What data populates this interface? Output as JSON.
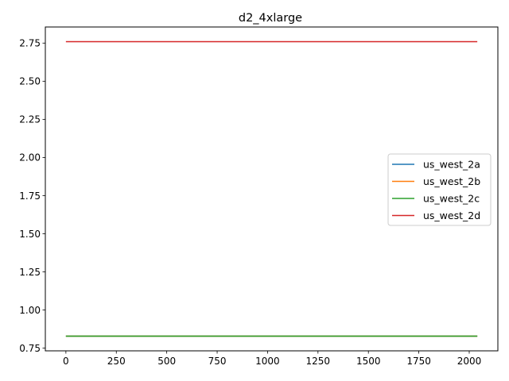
{
  "chart_data": {
    "type": "line",
    "title": "d2_4xlarge",
    "xlabel": "",
    "ylabel": "",
    "xlim": [
      -102,
      2142
    ],
    "ylim": [
      0.7325,
      2.8555
    ],
    "xticks": [
      0,
      250,
      500,
      750,
      1000,
      1250,
      1500,
      1750,
      2000
    ],
    "yticks": [
      0.75,
      1.0,
      1.25,
      1.5,
      1.75,
      2.0,
      2.25,
      2.5,
      2.75
    ],
    "ytick_labels": [
      "0.75",
      "1.00",
      "1.25",
      "1.50",
      "1.75",
      "2.00",
      "2.25",
      "2.50",
      "2.75"
    ],
    "grid": false,
    "legend_position": "center-right",
    "series": [
      {
        "name": "us_west_2a",
        "color": "#1f77b4",
        "x": [
          0,
          2040
        ],
        "y": [
          0.829,
          0.829
        ]
      },
      {
        "name": "us_west_2b",
        "color": "#ff7f0e",
        "x": [
          0,
          2040
        ],
        "y": [
          0.829,
          0.829
        ]
      },
      {
        "name": "us_west_2c",
        "color": "#2ca02c",
        "x": [
          0,
          2040
        ],
        "y": [
          0.829,
          0.829
        ]
      },
      {
        "name": "us_west_2d",
        "color": "#d62728",
        "x": [
          0,
          2040
        ],
        "y": [
          2.759,
          2.759
        ]
      }
    ]
  }
}
